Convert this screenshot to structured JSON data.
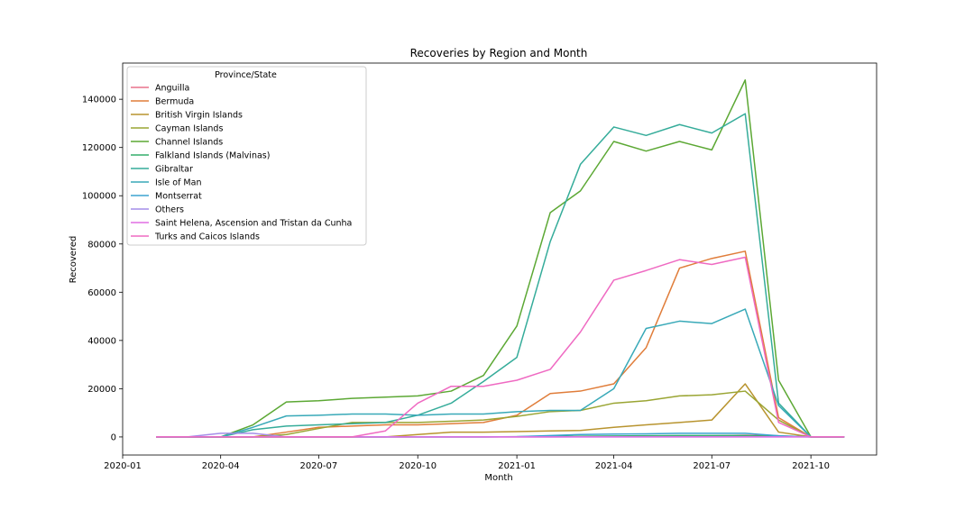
{
  "chart_data": {
    "type": "line",
    "title": "Recoveries by Region and Month",
    "xlabel": "Month",
    "ylabel": "Recovered",
    "legend_title": "Province/State",
    "legend_position": "top-left",
    "grid": false,
    "x": [
      "2020-02-01",
      "2020-03-01",
      "2020-04-01",
      "2020-05-01",
      "2020-06-01",
      "2020-07-01",
      "2020-08-01",
      "2020-09-01",
      "2020-10-01",
      "2020-11-01",
      "2020-12-01",
      "2021-01-01",
      "2021-02-01",
      "2021-03-01",
      "2021-04-01",
      "2021-05-01",
      "2021-06-01",
      "2021-07-01",
      "2021-08-01",
      "2021-09-01",
      "2021-10-01",
      "2021-11-01"
    ],
    "xlim": [
      "2020-01-01",
      "2021-12-01"
    ],
    "xticks": [
      "2020-01-01",
      "2020-04-01",
      "2020-07-01",
      "2020-10-01",
      "2021-01-01",
      "2021-04-01",
      "2021-07-01",
      "2021-10-01"
    ],
    "xtick_labels": [
      "2020-01",
      "2020-04",
      "2020-07",
      "2020-10",
      "2021-01",
      "2021-04",
      "2021-07",
      "2021-10"
    ],
    "ylim": [
      -7500,
      155000
    ],
    "yticks": [
      0,
      20000,
      40000,
      60000,
      80000,
      100000,
      120000,
      140000
    ],
    "ytick_labels": [
      "0",
      "20000",
      "40000",
      "60000",
      "80000",
      "100000",
      "120000",
      "140000"
    ],
    "series": [
      {
        "name": "Anguilla",
        "color": "#e8728c",
        "values": [
          0,
          0,
          0,
          3,
          3,
          3,
          3,
          3,
          3,
          3,
          3,
          20,
          30,
          50,
          100,
          200,
          300,
          500,
          700,
          500,
          0,
          0
        ]
      },
      {
        "name": "Bermuda",
        "color": "#e07d3a",
        "values": [
          0,
          0,
          0,
          0,
          2000,
          4000,
          4500,
          5000,
          5000,
          5500,
          6000,
          9000,
          18000,
          19000,
          22000,
          37000,
          70000,
          74000,
          77000,
          8000,
          0,
          0
        ]
      },
      {
        "name": "British Virgin Islands",
        "color": "#b8942f",
        "values": [
          0,
          0,
          0,
          0,
          0,
          0,
          0,
          0,
          1000,
          2000,
          2000,
          2200,
          2500,
          2700,
          4000,
          5000,
          6000,
          7000,
          22000,
          2000,
          0,
          0
        ]
      },
      {
        "name": "Cayman Islands",
        "color": "#9aa533",
        "values": [
          0,
          0,
          0,
          0,
          1000,
          3500,
          6000,
          6000,
          6000,
          6500,
          7000,
          8500,
          10500,
          11000,
          14000,
          15000,
          17000,
          17500,
          19000,
          7000,
          0,
          0
        ]
      },
      {
        "name": "Channel Islands",
        "color": "#5ca834",
        "values": [
          0,
          0,
          0,
          5000,
          14500,
          15000,
          16000,
          16500,
          17000,
          19000,
          25500,
          46000,
          93000,
          102000,
          122500,
          118500,
          122500,
          119000,
          148000,
          23500,
          0,
          0
        ]
      },
      {
        "name": "Falkland Islands (Malvinas)",
        "color": "#33ae6c",
        "values": [
          0,
          0,
          0,
          0,
          0,
          0,
          0,
          0,
          0,
          0,
          0,
          100,
          200,
          300,
          400,
          500,
          600,
          600,
          600,
          200,
          0,
          0
        ]
      },
      {
        "name": "Gibraltar",
        "color": "#35ac9a",
        "values": [
          0,
          0,
          0,
          3000,
          4500,
          5000,
          5500,
          6000,
          9000,
          14000,
          23000,
          33000,
          81000,
          113000,
          128500,
          125000,
          129500,
          126000,
          134000,
          14000,
          0,
          0
        ]
      },
      {
        "name": "Isle of Man",
        "color": "#38a9b8",
        "values": [
          0,
          0,
          0,
          4000,
          8700,
          9000,
          9500,
          9500,
          9000,
          9500,
          9500,
          10500,
          11000,
          11000,
          20000,
          45000,
          48000,
          47000,
          53000,
          13000,
          0,
          0
        ]
      },
      {
        "name": "Montserrat",
        "color": "#3ba3d0",
        "values": [
          0,
          0,
          0,
          0,
          0,
          0,
          0,
          0,
          0,
          0,
          0,
          100,
          600,
          1000,
          1200,
          1300,
          1500,
          1500,
          1500,
          500,
          0,
          0
        ]
      },
      {
        "name": "Others",
        "color": "#a48de8",
        "values": [
          0,
          0,
          1500,
          1500,
          0,
          0,
          0,
          0,
          0,
          0,
          0,
          0,
          0,
          0,
          0,
          0,
          0,
          0,
          0,
          0,
          0,
          0
        ]
      },
      {
        "name": "Saint Helena, Ascension and Tristan da Cunha",
        "color": "#e16fe4",
        "values": [
          0,
          0,
          0,
          0,
          0,
          0,
          0,
          0,
          0,
          0,
          0,
          0,
          0,
          0,
          0,
          0,
          0,
          0,
          0,
          0,
          0,
          0
        ]
      },
      {
        "name": "Turks and Caicos Islands",
        "color": "#ef6ac2",
        "values": [
          0,
          0,
          0,
          0,
          0,
          0,
          0,
          2500,
          14000,
          21000,
          21000,
          23500,
          28000,
          43500,
          65000,
          69000,
          73500,
          71500,
          74500,
          6000,
          0,
          0
        ]
      }
    ]
  }
}
